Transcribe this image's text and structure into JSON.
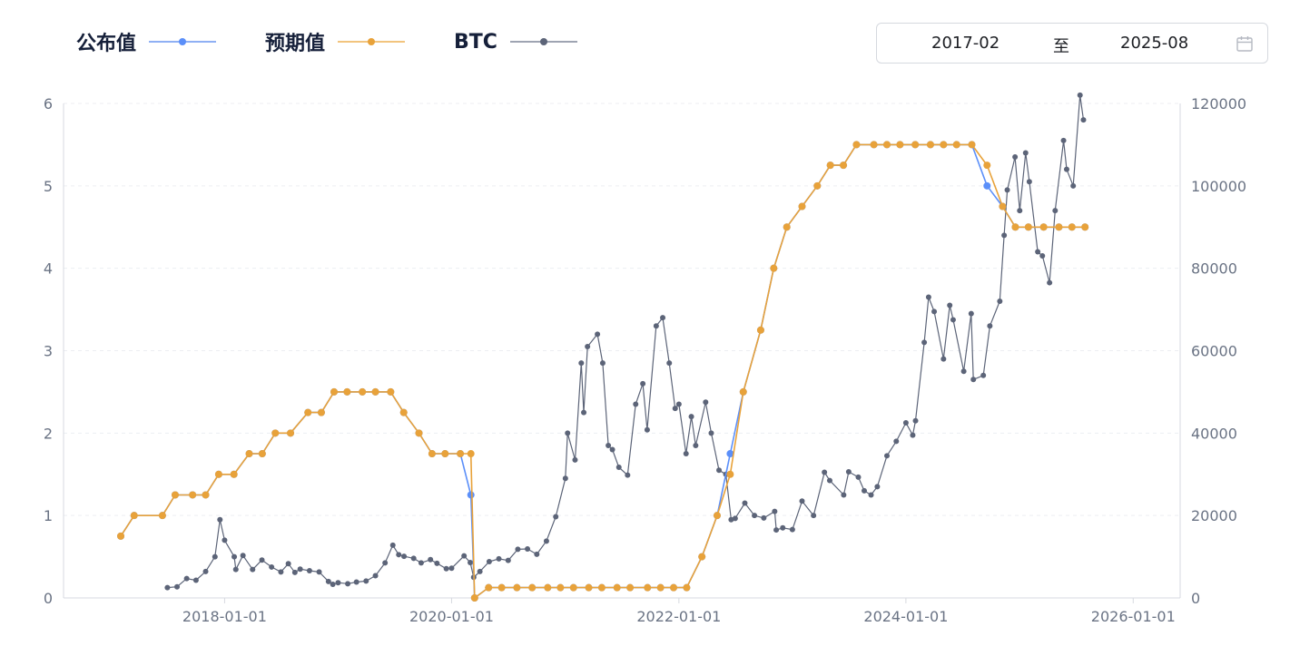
{
  "legend": [
    {
      "label": "公布值",
      "color": "#5b8ff9"
    },
    {
      "label": "预期值",
      "color": "#e8a23a"
    },
    {
      "label": "BTC",
      "color": "#5c6478"
    }
  ],
  "date_range": {
    "start": "2017-02",
    "separator": "至",
    "end": "2025-08",
    "icon": "calendar-icon"
  },
  "chart_data": {
    "type": "line",
    "left_axis": {
      "min": 0,
      "max": 6,
      "ticks": [
        "0",
        "1",
        "2",
        "3",
        "4",
        "5",
        "6"
      ]
    },
    "right_axis": {
      "min": 0,
      "max": 120000,
      "ticks": [
        "0",
        "20000",
        "40000",
        "60000",
        "80000",
        "100000",
        "120000"
      ]
    },
    "x_axis": {
      "min": "2016-08-01",
      "max": "2026-06-01",
      "ticks": [
        "2018-01-01",
        "2020-01-01",
        "2022-01-01",
        "2024-01-01",
        "2026-01-01"
      ]
    },
    "grid": "horizontal dashed",
    "legend_position": "top-left",
    "series": [
      {
        "name": "公布值",
        "axis": "left",
        "color": "#5b8ff9",
        "points": [
          [
            "2017-02-01",
            0.75
          ],
          [
            "2017-03-16",
            1.0
          ],
          [
            "2017-06-15",
            1.0
          ],
          [
            "2017-07-26",
            1.25
          ],
          [
            "2017-09-20",
            1.25
          ],
          [
            "2017-11-01",
            1.25
          ],
          [
            "2017-12-13",
            1.5
          ],
          [
            "2018-01-31",
            1.5
          ],
          [
            "2018-03-21",
            1.75
          ],
          [
            "2018-05-02",
            1.75
          ],
          [
            "2018-06-13",
            2.0
          ],
          [
            "2018-08-01",
            2.0
          ],
          [
            "2018-09-26",
            2.25
          ],
          [
            "2018-11-08",
            2.25
          ],
          [
            "2018-12-19",
            2.5
          ],
          [
            "2019-01-30",
            2.5
          ],
          [
            "2019-03-20",
            2.5
          ],
          [
            "2019-05-01",
            2.5
          ],
          [
            "2019-06-19",
            2.5
          ],
          [
            "2019-07-31",
            2.25
          ],
          [
            "2019-09-18",
            2.0
          ],
          [
            "2019-10-30",
            1.75
          ],
          [
            "2019-12-11",
            1.75
          ],
          [
            "2020-01-29",
            1.75
          ],
          [
            "2020-03-03",
            1.25
          ],
          [
            "2020-03-15",
            0.0
          ],
          [
            "2020-04-29",
            0.125
          ],
          [
            "2020-06-10",
            0.125
          ],
          [
            "2020-07-29",
            0.125
          ],
          [
            "2020-09-16",
            0.125
          ],
          [
            "2020-11-05",
            0.125
          ],
          [
            "2020-12-16",
            0.125
          ],
          [
            "2021-01-27",
            0.125
          ],
          [
            "2021-03-17",
            0.125
          ],
          [
            "2021-04-28",
            0.125
          ],
          [
            "2021-06-16",
            0.125
          ],
          [
            "2021-07-28",
            0.125
          ],
          [
            "2021-09-22",
            0.125
          ],
          [
            "2021-11-03",
            0.125
          ],
          [
            "2021-12-15",
            0.125
          ],
          [
            "2022-01-26",
            0.125
          ],
          [
            "2022-03-16",
            0.5
          ],
          [
            "2022-05-04",
            1.0
          ],
          [
            "2022-06-15",
            1.75
          ],
          [
            "2022-07-27",
            2.5
          ],
          [
            "2022-09-21",
            3.25
          ],
          [
            "2022-11-02",
            4.0
          ],
          [
            "2022-12-14",
            4.5
          ],
          [
            "2023-02-01",
            4.75
          ],
          [
            "2023-03-22",
            5.0
          ],
          [
            "2023-05-03",
            5.25
          ],
          [
            "2023-06-14",
            5.25
          ],
          [
            "2023-07-26",
            5.5
          ],
          [
            "2023-09-20",
            5.5
          ],
          [
            "2023-11-01",
            5.5
          ],
          [
            "2023-12-13",
            5.5
          ],
          [
            "2024-01-31",
            5.5
          ],
          [
            "2024-03-20",
            5.5
          ],
          [
            "2024-05-01",
            5.5
          ],
          [
            "2024-06-12",
            5.5
          ],
          [
            "2024-07-31",
            5.5
          ],
          [
            "2024-09-18",
            5.0
          ],
          [
            "2024-11-07",
            4.75
          ],
          [
            "2024-12-18",
            4.5
          ],
          [
            "2025-01-29",
            4.5
          ],
          [
            "2025-03-19",
            4.5
          ],
          [
            "2025-05-07",
            4.5
          ],
          [
            "2025-06-18",
            4.5
          ],
          [
            "2025-07-30",
            4.5
          ]
        ]
      },
      {
        "name": "预期值",
        "axis": "left",
        "color": "#e8a23a",
        "points": [
          [
            "2017-02-01",
            0.75
          ],
          [
            "2017-03-16",
            1.0
          ],
          [
            "2017-06-15",
            1.0
          ],
          [
            "2017-07-26",
            1.25
          ],
          [
            "2017-09-20",
            1.25
          ],
          [
            "2017-11-01",
            1.25
          ],
          [
            "2017-12-13",
            1.5
          ],
          [
            "2018-01-31",
            1.5
          ],
          [
            "2018-03-21",
            1.75
          ],
          [
            "2018-05-02",
            1.75
          ],
          [
            "2018-06-13",
            2.0
          ],
          [
            "2018-08-01",
            2.0
          ],
          [
            "2018-09-26",
            2.25
          ],
          [
            "2018-11-08",
            2.25
          ],
          [
            "2018-12-19",
            2.5
          ],
          [
            "2019-01-30",
            2.5
          ],
          [
            "2019-03-20",
            2.5
          ],
          [
            "2019-05-01",
            2.5
          ],
          [
            "2019-06-19",
            2.5
          ],
          [
            "2019-07-31",
            2.25
          ],
          [
            "2019-09-18",
            2.0
          ],
          [
            "2019-10-30",
            1.75
          ],
          [
            "2019-12-11",
            1.75
          ],
          [
            "2020-01-29",
            1.75
          ],
          [
            "2020-03-03",
            1.75
          ],
          [
            "2020-03-15",
            0.0
          ],
          [
            "2020-04-29",
            0.125
          ],
          [
            "2020-06-10",
            0.125
          ],
          [
            "2020-07-29",
            0.125
          ],
          [
            "2020-09-16",
            0.125
          ],
          [
            "2020-11-05",
            0.125
          ],
          [
            "2020-12-16",
            0.125
          ],
          [
            "2021-01-27",
            0.125
          ],
          [
            "2021-03-17",
            0.125
          ],
          [
            "2021-04-28",
            0.125
          ],
          [
            "2021-06-16",
            0.125
          ],
          [
            "2021-07-28",
            0.125
          ],
          [
            "2021-09-22",
            0.125
          ],
          [
            "2021-11-03",
            0.125
          ],
          [
            "2021-12-15",
            0.125
          ],
          [
            "2022-01-26",
            0.125
          ],
          [
            "2022-03-16",
            0.5
          ],
          [
            "2022-05-04",
            1.0
          ],
          [
            "2022-06-15",
            1.5
          ],
          [
            "2022-07-27",
            2.5
          ],
          [
            "2022-09-21",
            3.25
          ],
          [
            "2022-11-02",
            4.0
          ],
          [
            "2022-12-14",
            4.5
          ],
          [
            "2023-02-01",
            4.75
          ],
          [
            "2023-03-22",
            5.0
          ],
          [
            "2023-05-03",
            5.25
          ],
          [
            "2023-06-14",
            5.25
          ],
          [
            "2023-07-26",
            5.5
          ],
          [
            "2023-09-20",
            5.5
          ],
          [
            "2023-11-01",
            5.5
          ],
          [
            "2023-12-13",
            5.5
          ],
          [
            "2024-01-31",
            5.5
          ],
          [
            "2024-03-20",
            5.5
          ],
          [
            "2024-05-01",
            5.5
          ],
          [
            "2024-06-12",
            5.5
          ],
          [
            "2024-07-31",
            5.5
          ],
          [
            "2024-09-18",
            5.25
          ],
          [
            "2024-11-07",
            4.75
          ],
          [
            "2024-12-18",
            4.5
          ],
          [
            "2025-01-29",
            4.5
          ],
          [
            "2025-03-19",
            4.5
          ],
          [
            "2025-05-07",
            4.5
          ],
          [
            "2025-06-18",
            4.5
          ],
          [
            "2025-07-30",
            4.5
          ]
        ]
      },
      {
        "name": "BTC",
        "axis": "right",
        "color": "#5c6478",
        "points": [
          [
            "2017-07-01",
            2500
          ],
          [
            "2017-08-01",
            2700
          ],
          [
            "2017-09-01",
            4700
          ],
          [
            "2017-10-01",
            4300
          ],
          [
            "2017-11-01",
            6400
          ],
          [
            "2017-12-01",
            10000
          ],
          [
            "2017-12-17",
            19000
          ],
          [
            "2018-01-01",
            14000
          ],
          [
            "2018-02-01",
            10000
          ],
          [
            "2018-02-06",
            6900
          ],
          [
            "2018-03-01",
            10300
          ],
          [
            "2018-04-01",
            6900
          ],
          [
            "2018-05-01",
            9200
          ],
          [
            "2018-06-01",
            7500
          ],
          [
            "2018-07-01",
            6300
          ],
          [
            "2018-07-25",
            8300
          ],
          [
            "2018-08-15",
            6200
          ],
          [
            "2018-09-01",
            7000
          ],
          [
            "2018-10-01",
            6600
          ],
          [
            "2018-11-01",
            6300
          ],
          [
            "2018-12-01",
            4000
          ],
          [
            "2018-12-15",
            3300
          ],
          [
            "2019-01-01",
            3700
          ],
          [
            "2019-02-01",
            3450
          ],
          [
            "2019-03-01",
            3850
          ],
          [
            "2019-04-01",
            4100
          ],
          [
            "2019-05-01",
            5400
          ],
          [
            "2019-06-01",
            8500
          ],
          [
            "2019-06-26",
            12800
          ],
          [
            "2019-07-15",
            10500
          ],
          [
            "2019-08-01",
            10100
          ],
          [
            "2019-09-01",
            9600
          ],
          [
            "2019-09-25",
            8500
          ],
          [
            "2019-10-25",
            9300
          ],
          [
            "2019-11-15",
            8400
          ],
          [
            "2019-12-15",
            7100
          ],
          [
            "2020-01-01",
            7200
          ],
          [
            "2020-02-10",
            10200
          ],
          [
            "2020-03-01",
            8600
          ],
          [
            "2020-03-12",
            5000
          ],
          [
            "2020-04-01",
            6400
          ],
          [
            "2020-05-01",
            8800
          ],
          [
            "2020-06-01",
            9500
          ],
          [
            "2020-07-01",
            9100
          ],
          [
            "2020-08-01",
            11800
          ],
          [
            "2020-09-01",
            11900
          ],
          [
            "2020-10-01",
            10600
          ],
          [
            "2020-11-01",
            13800
          ],
          [
            "2020-12-01",
            19700
          ],
          [
            "2021-01-01",
            29000
          ],
          [
            "2021-01-08",
            40000
          ],
          [
            "2021-02-01",
            33500
          ],
          [
            "2021-02-21",
            57000
          ],
          [
            "2021-03-01",
            45000
          ],
          [
            "2021-03-13",
            61000
          ],
          [
            "2021-04-14",
            64000
          ],
          [
            "2021-05-01",
            57000
          ],
          [
            "2021-05-19",
            37000
          ],
          [
            "2021-06-01",
            36000
          ],
          [
            "2021-06-22",
            31700
          ],
          [
            "2021-07-20",
            29800
          ],
          [
            "2021-08-15",
            47000
          ],
          [
            "2021-09-07",
            52000
          ],
          [
            "2021-09-21",
            40800
          ],
          [
            "2021-10-20",
            66000
          ],
          [
            "2021-11-10",
            68000
          ],
          [
            "2021-12-01",
            57000
          ],
          [
            "2021-12-20",
            46000
          ],
          [
            "2022-01-01",
            47000
          ],
          [
            "2022-01-24",
            35000
          ],
          [
            "2022-02-10",
            44000
          ],
          [
            "2022-02-24",
            37000
          ],
          [
            "2022-03-28",
            47500
          ],
          [
            "2022-04-15",
            40000
          ],
          [
            "2022-05-10",
            31000
          ],
          [
            "2022-06-01",
            30000
          ],
          [
            "2022-06-18",
            19000
          ],
          [
            "2022-07-01",
            19300
          ],
          [
            "2022-08-01",
            23000
          ],
          [
            "2022-09-01",
            20000
          ],
          [
            "2022-10-01",
            19400
          ],
          [
            "2022-11-05",
            21000
          ],
          [
            "2022-11-10",
            16500
          ],
          [
            "2022-12-01",
            17000
          ],
          [
            "2023-01-01",
            16600
          ],
          [
            "2023-02-01",
            23500
          ],
          [
            "2023-03-10",
            20000
          ],
          [
            "2023-04-14",
            30500
          ],
          [
            "2023-05-01",
            28500
          ],
          [
            "2023-06-15",
            25000
          ],
          [
            "2023-07-01",
            30600
          ],
          [
            "2023-08-01",
            29300
          ],
          [
            "2023-08-20",
            26000
          ],
          [
            "2023-09-11",
            25000
          ],
          [
            "2023-10-01",
            27000
          ],
          [
            "2023-11-01",
            34500
          ],
          [
            "2023-12-01",
            38000
          ],
          [
            "2024-01-01",
            42500
          ],
          [
            "2024-01-23",
            39500
          ],
          [
            "2024-02-01",
            43000
          ],
          [
            "2024-02-29",
            62000
          ],
          [
            "2024-03-14",
            73000
          ],
          [
            "2024-04-01",
            69500
          ],
          [
            "2024-05-01",
            58000
          ],
          [
            "2024-05-21",
            71000
          ],
          [
            "2024-06-01",
            67500
          ],
          [
            "2024-07-05",
            55000
          ],
          [
            "2024-07-29",
            69000
          ],
          [
            "2024-08-05",
            53000
          ],
          [
            "2024-09-06",
            54000
          ],
          [
            "2024-09-27",
            66000
          ],
          [
            "2024-10-29",
            72000
          ],
          [
            "2024-11-12",
            88000
          ],
          [
            "2024-11-22",
            99000
          ],
          [
            "2024-12-17",
            107000
          ],
          [
            "2025-01-01",
            94000
          ],
          [
            "2025-01-20",
            108000
          ],
          [
            "2025-02-01",
            101000
          ],
          [
            "2025-02-28",
            84000
          ],
          [
            "2025-03-15",
            83000
          ],
          [
            "2025-04-07",
            76500
          ],
          [
            "2025-04-25",
            94000
          ],
          [
            "2025-05-22",
            111000
          ],
          [
            "2025-06-01",
            104000
          ],
          [
            "2025-06-22",
            100000
          ],
          [
            "2025-07-14",
            122000
          ],
          [
            "2025-07-25",
            116000
          ]
        ]
      }
    ]
  }
}
